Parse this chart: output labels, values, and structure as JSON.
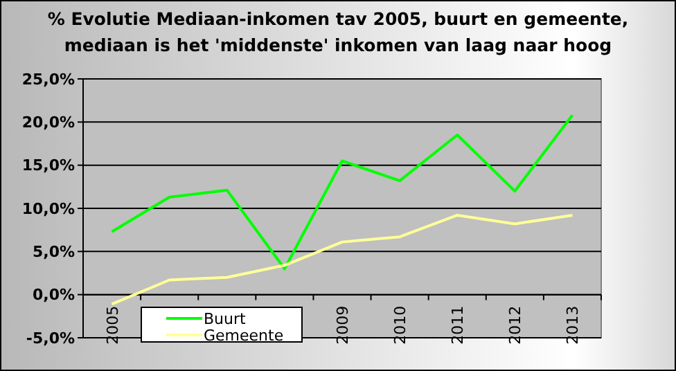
{
  "chart_data": {
    "type": "line",
    "title": "% Evolutie Mediaan-inkomen tav 2005, buurt en gemeente, mediaan is het 'middenste' inkomen van  laag naar hoog",
    "categories": [
      "2005",
      null,
      null,
      null,
      "2009",
      "2010",
      "2011",
      "2012",
      "2013"
    ],
    "series": [
      {
        "name": "Buurt",
        "color": "#00ff00",
        "values": [
          7.3,
          11.3,
          12.1,
          3.0,
          15.5,
          13.2,
          18.5,
          12.0,
          20.8
        ]
      },
      {
        "name": "Gemeente",
        "color": "#ffff99",
        "values": [
          -1.1,
          1.7,
          2.0,
          3.4,
          6.1,
          6.7,
          9.2,
          8.2,
          9.2
        ]
      }
    ],
    "ylim": [
      -5,
      25
    ],
    "yticks": [
      {
        "value": -5,
        "label": "-5,0%"
      },
      {
        "value": 0,
        "label": "0,0%"
      },
      {
        "value": 5,
        "label": "5,0%"
      },
      {
        "value": 10,
        "label": "10,0%"
      },
      {
        "value": 15,
        "label": "15,0%"
      },
      {
        "value": 20,
        "label": "20,0%"
      },
      {
        "value": 25,
        "label": "25,0%"
      }
    ],
    "grid": "y",
    "legend": "bottom left",
    "marker": "none",
    "line_style": "solid"
  }
}
